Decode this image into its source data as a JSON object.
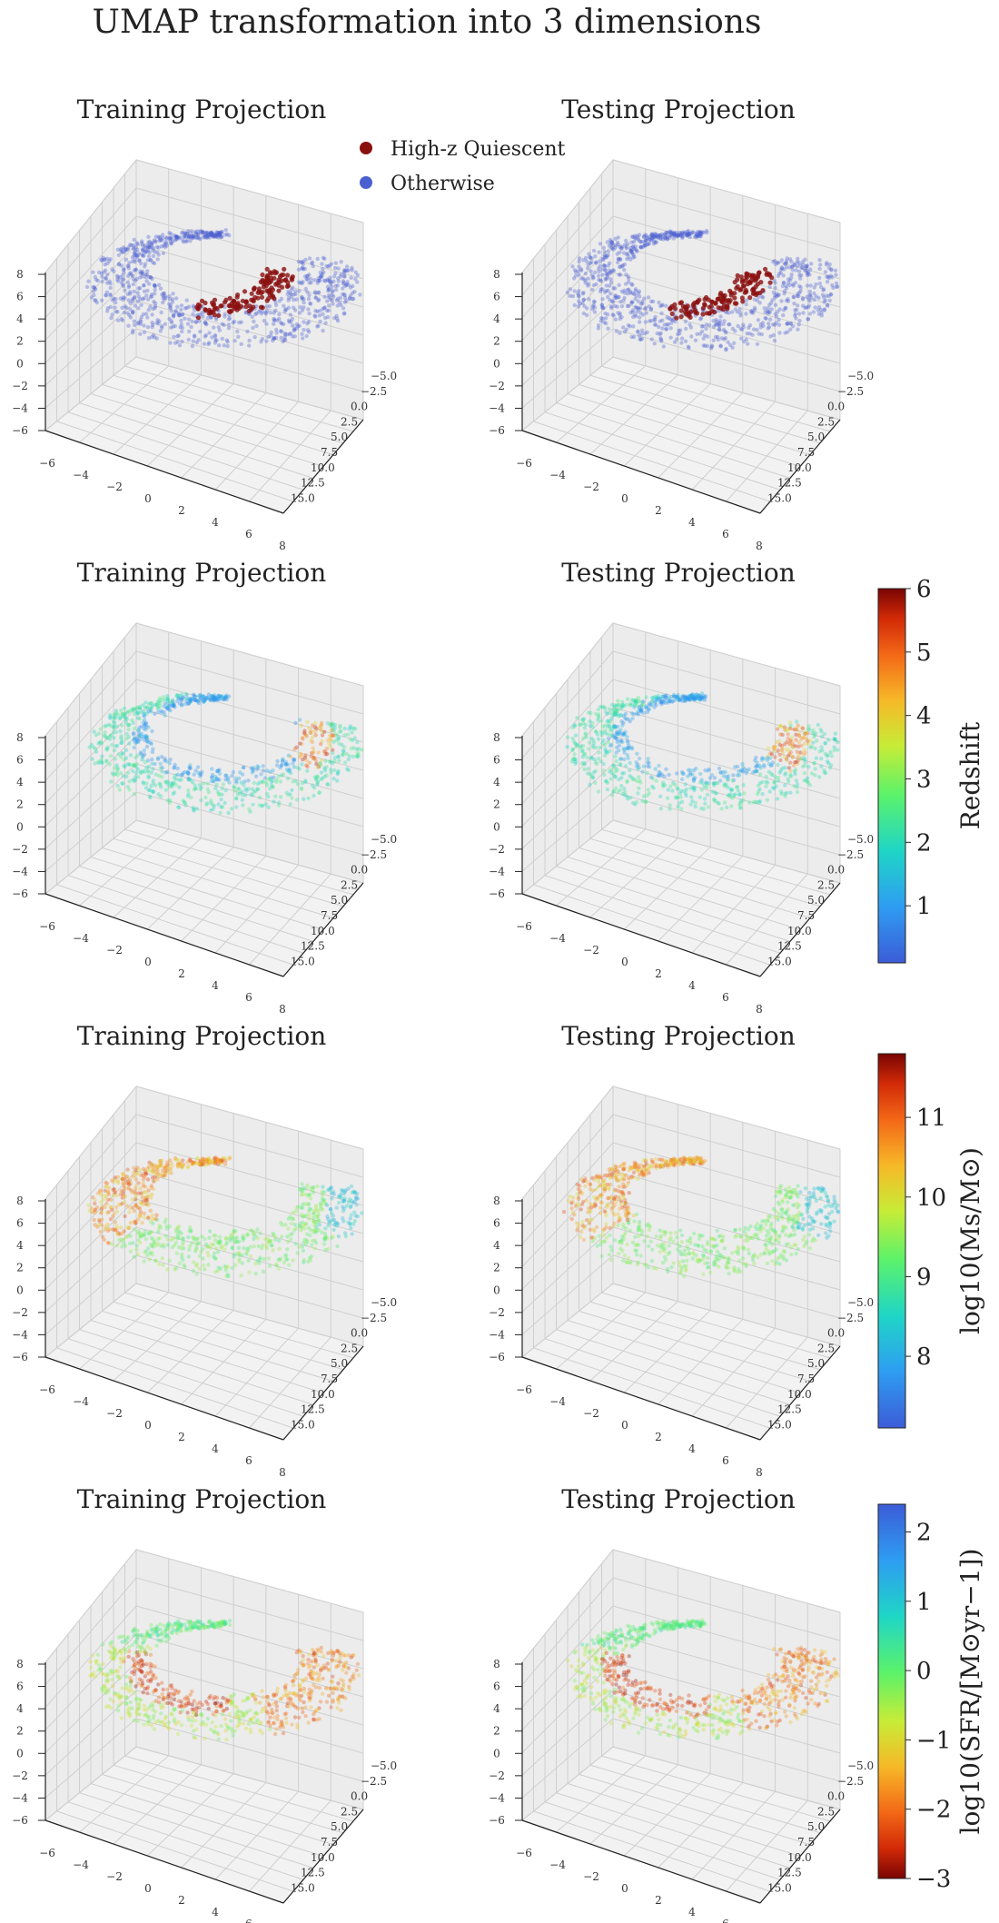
{
  "colors": {
    "quiescent": "#8b1010",
    "otherwise": "#4a5fd0",
    "pane_floor": "#f2f2f2",
    "pane_wall": "#ececec",
    "grid": "#cfcfcf"
  },
  "chart_data": {
    "type": "scatter",
    "title": "UMAP transformation into 3 dimensions",
    "panel_titles": [
      "Training Projection",
      "Testing Projection"
    ],
    "axes": {
      "x_ticks": [
        "−6",
        "−4",
        "−2",
        "0",
        "2",
        "4",
        "6",
        "8"
      ],
      "y_ticks": [
        "−5.0",
        "−2.5",
        "0.0",
        "2.5",
        "5.0",
        "7.5",
        "10.0",
        "12.5",
        "15.0"
      ],
      "z_ticks": [
        "−6",
        "−4",
        "−2",
        "0",
        "2",
        "4",
        "6",
        "8"
      ],
      "xlim": [
        -6,
        8
      ],
      "ylim": [
        -5,
        15
      ],
      "zlim": [
        -6,
        8
      ],
      "grid": true
    },
    "rows": [
      {
        "color_by": "category",
        "legend": [
          "High-z Quiescent",
          "Otherwise"
        ],
        "legend_placement": "top-center"
      },
      {
        "color_by": "continuous",
        "colorbar_label": "Redshift",
        "colorbar_ticks": [
          "1",
          "2",
          "3",
          "4",
          "5",
          "6"
        ],
        "colorbar_range": [
          0.1,
          6
        ],
        "colormap": "turbo",
        "reversed": false
      },
      {
        "color_by": "continuous",
        "colorbar_label": "log10(Ms/M⊙)",
        "colorbar_ticks": [
          "8",
          "9",
          "10",
          "11"
        ],
        "colorbar_range": [
          7.1,
          11.8
        ],
        "colormap": "turbo",
        "reversed": false
      },
      {
        "color_by": "continuous",
        "colorbar_label": "log10(SFR/[M⊙yr−1])",
        "colorbar_ticks": [
          "−3",
          "−2",
          "−1",
          "0",
          "1",
          "2"
        ],
        "colorbar_range": [
          -3,
          2.4
        ],
        "colormap": "turbo",
        "reversed": true
      }
    ]
  }
}
